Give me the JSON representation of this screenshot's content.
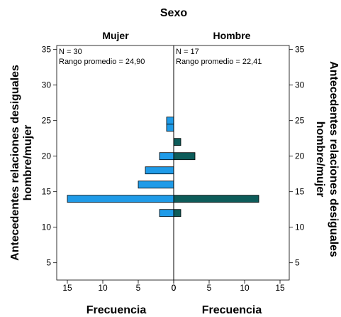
{
  "chart_data": {
    "type": "bar",
    "title": "Sexo",
    "ylabel": "Antecedentes relaciones desiguales hombre/mujer",
    "xlabel": "Frecuencia",
    "ylim": [
      3,
      37
    ],
    "y_ticks": [
      "5",
      "10",
      "15",
      "20",
      "25",
      "30",
      "35"
    ],
    "colors": {
      "Mujer": "#1f9be8",
      "Hombre": "#0d5c5a"
    },
    "panels": [
      {
        "name": "Mujer",
        "stats": [
          "N = 30",
          "Rango promedio = 24,90"
        ],
        "x_ticks": [
          "15",
          "10",
          "5",
          "0"
        ],
        "xlim": [
          0,
          15
        ],
        "bars": [
          {
            "y": 25,
            "count": 1
          },
          {
            "y": 24,
            "count": 1
          },
          {
            "y": 20,
            "count": 2
          },
          {
            "y": 18,
            "count": 4
          },
          {
            "y": 16,
            "count": 5
          },
          {
            "y": 14,
            "count": 15
          },
          {
            "y": 12,
            "count": 2
          }
        ]
      },
      {
        "name": "Hombre",
        "stats": [
          "N = 17",
          "Rango promedio = 22,41"
        ],
        "x_ticks": [
          "0",
          "5",
          "10",
          "15"
        ],
        "xlim": [
          0,
          15
        ],
        "bars": [
          {
            "y": 22,
            "count": 1
          },
          {
            "y": 20,
            "count": 3
          },
          {
            "y": 14,
            "count": 12
          },
          {
            "y": 12,
            "count": 1
          }
        ]
      }
    ]
  }
}
